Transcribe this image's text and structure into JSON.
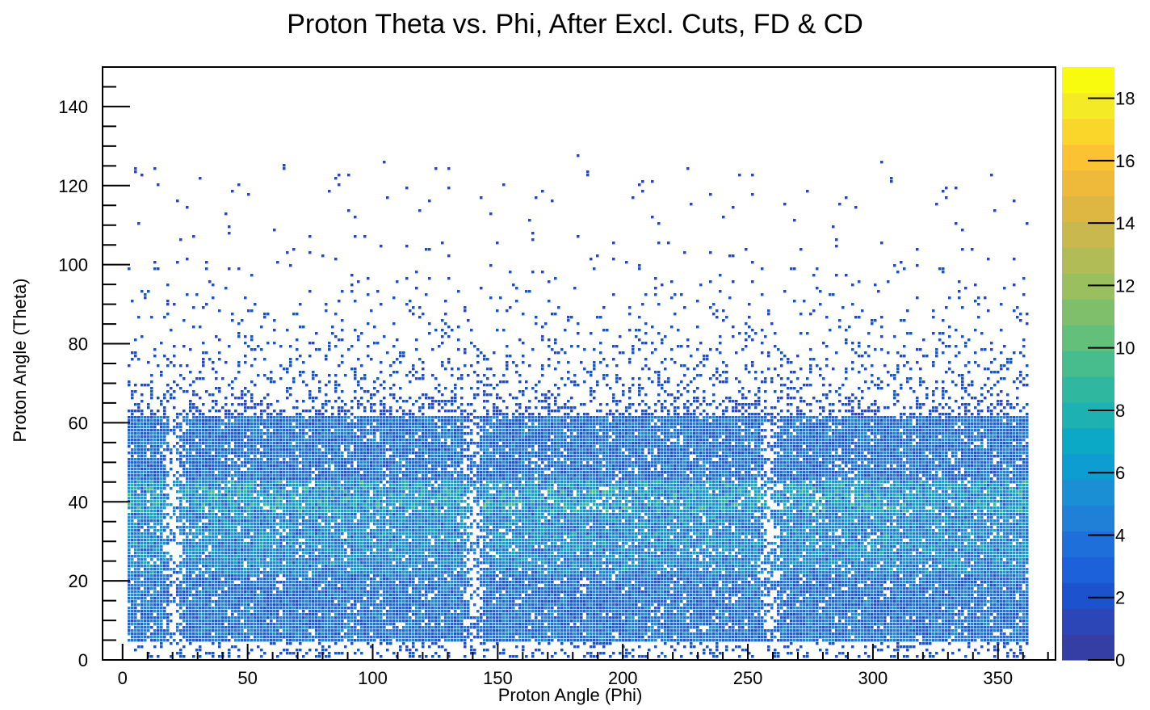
{
  "chart_data": {
    "type": "heatmap",
    "title": "Proton Theta vs. Phi, After Excl. Cuts, FD & CD",
    "xlabel": "Proton Angle (Phi)",
    "ylabel": "Proton Angle (Theta)",
    "xlim": [
      -8,
      373
    ],
    "ylim": [
      0,
      150
    ],
    "xticks": [
      0,
      50,
      100,
      150,
      200,
      250,
      300,
      350
    ],
    "xtick_labels": [
      "0",
      "50",
      "100",
      "150",
      "200",
      "250",
      "300",
      "350"
    ],
    "yticks": [
      0,
      20,
      40,
      60,
      80,
      100,
      120,
      140
    ],
    "ytick_labels": [
      "0",
      "20",
      "40",
      "60",
      "80",
      "100",
      "120",
      "140"
    ],
    "colorbar": {
      "zlim": [
        0,
        19
      ],
      "ticks": [
        0,
        2,
        4,
        6,
        8,
        10,
        12,
        14,
        16,
        18
      ],
      "tick_labels": [
        "0",
        "2",
        "4",
        "6",
        "8",
        "10",
        "12",
        "14",
        "16",
        "18"
      ],
      "palette": [
        "#353ea5",
        "#2c46b7",
        "#1d52cf",
        "#1c60da",
        "#1f6fda",
        "#2080d8",
        "#1a8fd3",
        "#0e9dd0",
        "#0ca9c6",
        "#1db1b1",
        "#2fb89f",
        "#47bd8d",
        "#62c07a",
        "#7fbf6b",
        "#99bf5f",
        "#b2bc56",
        "#c8b84d",
        "#ddb742",
        "#efb93a",
        "#fbc334",
        "#fad62b",
        "#f5ea26",
        "#f9fb0e"
      ]
    },
    "dense_region": {
      "phi_range": [
        2,
        362
      ],
      "theta_range": [
        5,
        62
      ],
      "gaps_phi": [
        20,
        140,
        258
      ],
      "hot_band_theta": [
        38,
        46
      ]
    }
  }
}
